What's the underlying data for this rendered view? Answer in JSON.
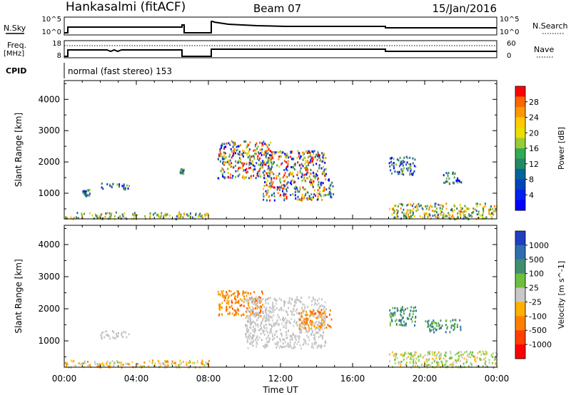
{
  "header": {
    "station": "Hankasalmi (fitACF)",
    "beam": "Beam 07",
    "date": "15/Jan/2016"
  },
  "status_panel": {
    "left_top_label": "N.Sky",
    "left_top_ticks": [
      "10^5",
      "10^0"
    ],
    "right_top_label": "N.Search",
    "right_top_ticks": [
      "10^5",
      "10^0"
    ],
    "freq_label": "Freq.",
    "freq_unit": "[MHz]",
    "freq_ticks": [
      "18",
      "8"
    ],
    "nave_label": "Nave",
    "nave_ticks": [
      "60",
      "0"
    ],
    "cpid_label": "CPID",
    "cpid_text": "normal (fast stereo) 153"
  },
  "x_axis": {
    "label": "Time UT",
    "ticks": [
      "00:00",
      "04:00",
      "08:00",
      "12:00",
      "16:00",
      "20:00",
      "00:00"
    ]
  },
  "chart_data": [
    {
      "type": "heatmap",
      "panel": "power",
      "ylabel": "Slant Range [km]",
      "yticks": [
        1000,
        2000,
        3000,
        4000
      ],
      "ylim": [
        180,
        4600
      ],
      "xlim_hours": [
        0,
        24
      ],
      "colorbar_label": "Power [dB]",
      "colorbar_ticks": [
        "28",
        "24",
        "20",
        "16",
        "12",
        "8",
        "4"
      ],
      "colorbar_colors": [
        "#ff0000",
        "#ff6600",
        "#ff9900",
        "#ffcc00",
        "#eedd00",
        "#99cc33",
        "#33aa55",
        "#228866",
        "#006699",
        "#0044bb",
        "#0022ee",
        "#0000ff"
      ],
      "scatter_regions": [
        {
          "t": [
            0.0,
            8.0
          ],
          "r": [
            200,
            420
          ],
          "level": "low"
        },
        {
          "t": [
            1.0,
            1.4
          ],
          "r": [
            900,
            1150
          ],
          "level": "mid"
        },
        {
          "t": [
            2.0,
            3.6
          ],
          "r": [
            1150,
            1350
          ],
          "level": "mid"
        },
        {
          "t": [
            6.4,
            6.6
          ],
          "r": [
            1650,
            1800
          ],
          "level": "mid"
        },
        {
          "t": [
            8.5,
            11.5
          ],
          "r": [
            1500,
            2700
          ],
          "level": "high"
        },
        {
          "t": [
            11.0,
            14.5
          ],
          "r": [
            800,
            2400
          ],
          "level": "high"
        },
        {
          "t": [
            14.5,
            14.9
          ],
          "r": [
            900,
            1500
          ],
          "level": "mid"
        },
        {
          "t": [
            18.0,
            19.5
          ],
          "r": [
            1600,
            2200
          ],
          "level": "mid"
        },
        {
          "t": [
            21.0,
            22.0
          ],
          "r": [
            1300,
            1700
          ],
          "level": "mid"
        },
        {
          "t": [
            18.0,
            24.0
          ],
          "r": [
            200,
            700
          ],
          "level": "low"
        }
      ]
    },
    {
      "type": "heatmap",
      "panel": "velocity",
      "ylabel": "Slant Range [km]",
      "yticks": [
        1000,
        2000,
        3000,
        4000
      ],
      "ylim": [
        180,
        4600
      ],
      "xlim_hours": [
        0,
        24
      ],
      "colorbar_label": "Velocity [m s^-1]",
      "colorbar_ticks": [
        "1000",
        "500",
        "100",
        "25",
        "-25",
        "-100",
        "-500",
        "-1000"
      ],
      "colorbar_colors": [
        "#1f3fbf",
        "#2f6faf",
        "#3f8f6f",
        "#6fbf3f",
        "#c8c8c8",
        "#ffb000",
        "#ff8000",
        "#ff4000",
        "#ff0000"
      ],
      "scatter_regions": [
        {
          "t": [
            0.0,
            8.0
          ],
          "r": [
            200,
            420
          ],
          "level": "mixed"
        },
        {
          "t": [
            2.0,
            3.6
          ],
          "r": [
            1100,
            1350
          ],
          "level": "gray"
        },
        {
          "t": [
            8.5,
            11.0
          ],
          "r": [
            1800,
            2600
          ],
          "level": "neg"
        },
        {
          "t": [
            10.0,
            14.5
          ],
          "r": [
            800,
            2400
          ],
          "level": "gray"
        },
        {
          "t": [
            13.0,
            14.8
          ],
          "r": [
            1400,
            2000
          ],
          "level": "neg"
        },
        {
          "t": [
            18.0,
            19.5
          ],
          "r": [
            1500,
            2100
          ],
          "level": "pos"
        },
        {
          "t": [
            20.0,
            22.0
          ],
          "r": [
            1300,
            1700
          ],
          "level": "pos"
        },
        {
          "t": [
            18.0,
            24.0
          ],
          "r": [
            200,
            700
          ],
          "level": "mixedpos"
        }
      ]
    }
  ]
}
